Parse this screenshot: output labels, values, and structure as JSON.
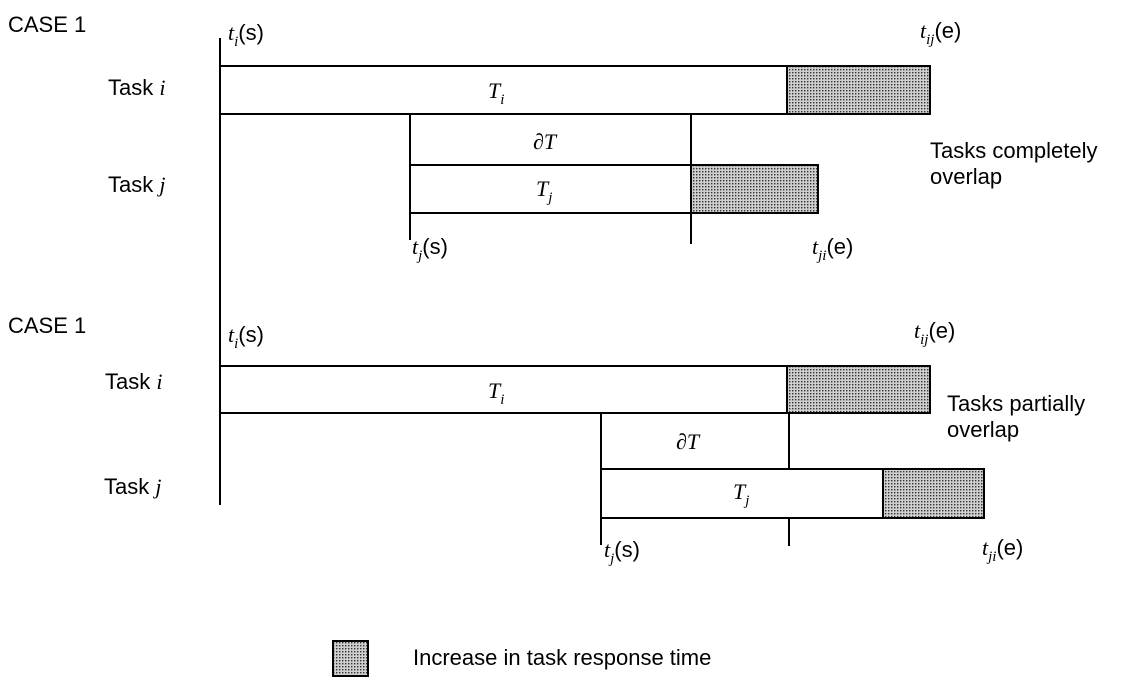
{
  "case_a": {
    "title": "CASE 1",
    "task_i_label": "Task",
    "task_j_label": "Task",
    "task_i_var": "i",
    "task_j_var": "j",
    "ti_start": {
      "base": "t",
      "sub": "i",
      "suffix": "(s)"
    },
    "tij_end": {
      "base": "t",
      "sub": "ij",
      "suffix": "(e)"
    },
    "tj_start": {
      "base": "t",
      "sub": "j",
      "suffix": "(s)"
    },
    "tji_end": {
      "base": "t",
      "sub": "ji",
      "suffix": "(e)"
    },
    "Ti": {
      "base": "T",
      "sub": "i"
    },
    "Tj": {
      "base": "T",
      "sub": "j"
    },
    "delta": "∂T",
    "note_line1": "Tasks completely",
    "note_line2": "overlap"
  },
  "case_b": {
    "title": "CASE 1",
    "task_i_label": "Task",
    "task_j_label": "Task",
    "task_i_var": "i",
    "task_j_var": "j",
    "ti_start": {
      "base": "t",
      "sub": "i",
      "suffix": "(s)"
    },
    "tij_end": {
      "base": "t",
      "sub": "ij",
      "suffix": "(e)"
    },
    "tj_start": {
      "base": "t",
      "sub": "j",
      "suffix": "(s)"
    },
    "tji_end": {
      "base": "t",
      "sub": "ji",
      "suffix": "(e)"
    },
    "Ti": {
      "base": "T",
      "sub": "i"
    },
    "Tj": {
      "base": "T",
      "sub": "j"
    },
    "delta": "∂T",
    "note_line1": "Tasks partially",
    "note_line2": "overlap"
  },
  "legend": {
    "text": "Increase in task response time"
  },
  "colors": {
    "shade_dot": "#000000",
    "background": "#ffffff"
  }
}
